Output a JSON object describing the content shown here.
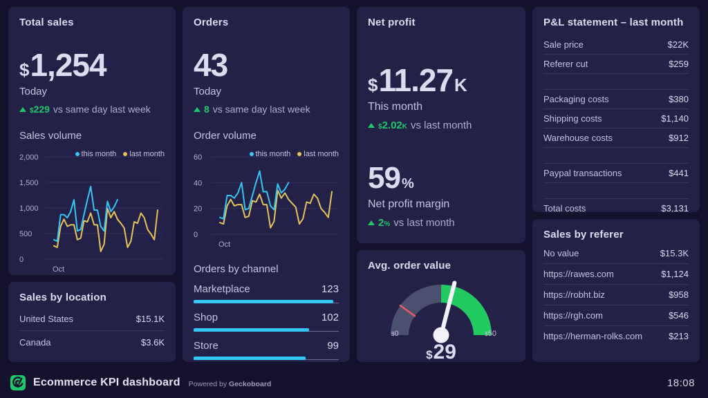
{
  "cards": {
    "total_sales": {
      "title": "Total sales",
      "metric": {
        "prefix": "$",
        "value": "1,254"
      },
      "caption": "Today",
      "delta": {
        "prefix": "$",
        "value": "229",
        "suffix": "",
        "text": "vs same day last week"
      },
      "section_title": "Sales volume"
    },
    "sales_by_location": {
      "title": "Sales by location",
      "rows": [
        {
          "label": "United States",
          "value": "$15.1K"
        },
        {
          "label": "Canada",
          "value": "$3.6K"
        }
      ]
    },
    "orders": {
      "title": "Orders",
      "metric": {
        "prefix": "",
        "value": "43"
      },
      "caption": "Today",
      "delta": {
        "prefix": "",
        "value": "8",
        "suffix": "",
        "text": "vs same day last week"
      },
      "section_title": "Order volume",
      "channels_title": "Orders by channel"
    },
    "net_profit": {
      "title": "Net profit",
      "metric": {
        "prefix": "$",
        "value": "11.27",
        "suffix": "K"
      },
      "caption": "This month",
      "delta": {
        "prefix": "$",
        "value": "2.02",
        "suffix": "K",
        "text": "vs last month"
      },
      "margin_metric": {
        "value": "59",
        "suffix": "%"
      },
      "margin_caption": "Net profit margin",
      "margin_delta": {
        "prefix": "",
        "value": "2",
        "suffix": "%",
        "text": "vs last month"
      }
    },
    "avg_order_value": {
      "title": "Avg. order value"
    },
    "pnl": {
      "title": "P&L statement – last month",
      "groups": [
        {
          "rows": [
            {
              "label": "Sale price",
              "value": "$22K"
            },
            {
              "label": "Referer cut",
              "value": "$259"
            }
          ]
        },
        {
          "rows": [
            {
              "label": "Packaging costs",
              "value": "$380"
            },
            {
              "label": "Shipping costs",
              "value": "$1,140"
            },
            {
              "label": "Warehouse costs",
              "value": "$912"
            }
          ]
        },
        {
          "rows": [
            {
              "label": "Paypal transactions",
              "value": "$441"
            }
          ]
        },
        {
          "rows": [
            {
              "label": "Total costs",
              "value": "$3,131"
            }
          ]
        }
      ]
    },
    "sales_by_referer": {
      "title": "Sales by referer",
      "rows": [
        {
          "label": "No value",
          "value": "$15.3K"
        },
        {
          "label": "https://rawes.com",
          "value": "$1,124"
        },
        {
          "label": "https://robht.biz",
          "value": "$958"
        },
        {
          "label": "https://rgh.com",
          "value": "$546"
        },
        {
          "label": "https://herman-rolks.com",
          "value": "$213"
        }
      ]
    }
  },
  "chart_data": {
    "sales_volume": {
      "type": "line",
      "title": "Sales volume",
      "xlabel": "Oct",
      "ylabel": "",
      "ylim": [
        0,
        2000
      ],
      "label_width": 38,
      "yticks": [
        {
          "v": 0,
          "label": "0"
        },
        {
          "v": 500,
          "label": "500"
        },
        {
          "v": 1000,
          "label": "1,000"
        },
        {
          "v": 1500,
          "label": "1,500"
        },
        {
          "v": 2000,
          "label": "2,000"
        }
      ],
      "series": [
        {
          "name": "this month",
          "color": "#35c8f5",
          "values": [
            380,
            350,
            870,
            870,
            810,
            930,
            1160,
            550,
            580,
            870,
            1160,
            1420,
            960,
            960,
            640,
            550,
            1130,
            930,
            1020,
            1160
          ]
        },
        {
          "name": "last month",
          "color": "#e5c55b",
          "values": [
            260,
            230,
            640,
            780,
            640,
            670,
            670,
            380,
            410,
            750,
            730,
            900,
            670,
            670,
            150,
            290,
            990,
            810,
            930,
            780,
            700,
            610,
            230,
            350,
            730,
            700,
            900,
            810,
            580,
            490,
            380,
            960
          ]
        }
      ]
    },
    "order_volume": {
      "type": "line",
      "title": "Order volume",
      "xlabel": "Oct",
      "ylabel": "",
      "ylim": [
        0,
        60
      ],
      "label_width": 26,
      "yticks": [
        {
          "v": 0,
          "label": "0"
        },
        {
          "v": 20,
          "label": "20"
        },
        {
          "v": 40,
          "label": "40"
        },
        {
          "v": 60,
          "label": "60"
        }
      ],
      "series": [
        {
          "name": "this month",
          "color": "#35c8f5",
          "values": [
            13,
            12,
            30,
            30,
            28,
            32,
            40,
            19,
            20,
            30,
            40,
            49,
            33,
            33,
            22,
            19,
            39,
            32,
            35,
            40
          ]
        },
        {
          "name": "last month",
          "color": "#e5c55b",
          "values": [
            9,
            8,
            22,
            27,
            22,
            23,
            23,
            13,
            14,
            26,
            25,
            31,
            23,
            23,
            5,
            10,
            34,
            28,
            32,
            27,
            24,
            21,
            8,
            12,
            25,
            24,
            31,
            28,
            20,
            17,
            13,
            33
          ]
        }
      ]
    },
    "orders_by_channel": {
      "type": "bar",
      "title": "Orders by channel",
      "scale_max": 128,
      "bar_color": "#35c8f5",
      "categories": [
        "Marketplace",
        "Shop",
        "Store"
      ],
      "values": [
        123,
        102,
        99
      ],
      "value_labels": [
        "123",
        "102",
        "99"
      ]
    },
    "avg_order_value_gauge": {
      "type": "gauge",
      "title": "Avg. order value",
      "min": 0,
      "max": 50,
      "value": 29,
      "green_from": 25,
      "threshold": 10,
      "track_color": "#4b506f",
      "green_color": "#23ca62",
      "threshold_color": "#f25767",
      "needle_color": "#f3f2fa",
      "min_label": {
        "prefix": "$",
        "value": "0"
      },
      "max_label": {
        "prefix": "$",
        "value": "50"
      },
      "value_label": {
        "prefix": "$",
        "value": "29"
      }
    }
  },
  "footer": {
    "logo": "geckoboard-logo",
    "title": "Ecommerce KPI dashboard",
    "powered_prefix": "Powered by",
    "powered_brand": "Geckoboard",
    "clock": "18:08"
  }
}
